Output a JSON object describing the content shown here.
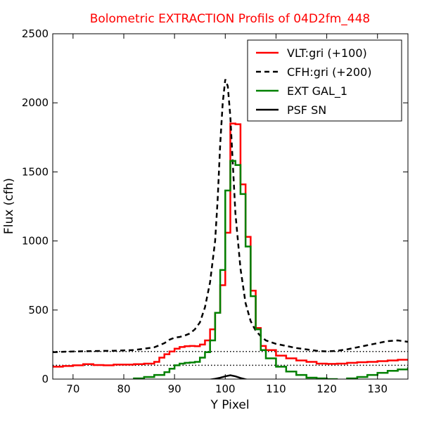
{
  "chart_data": {
    "type": "line",
    "title": "Bolometric EXTRACTION Profils of 04D2fm_448",
    "title_color": "#ff0000",
    "xlabel": "Y Pixel",
    "ylabel": "Flux (cfh)",
    "xlim": [
      66,
      136
    ],
    "ylim": [
      0,
      2500
    ],
    "x_ticks": [
      70,
      80,
      90,
      100,
      110,
      120,
      130
    ],
    "y_ticks": [
      0,
      500,
      1000,
      1500,
      2000,
      2500
    ],
    "grid": false,
    "legend_position": "top-right",
    "series": [
      {
        "name": "VLT:gri (+100)",
        "color": "#ff0000",
        "style": "steps",
        "x": [
          66,
          68,
          70,
          72,
          74,
          76,
          78,
          80,
          82,
          84,
          86,
          87,
          88,
          89,
          90,
          91,
          92,
          93,
          94,
          95,
          96,
          97,
          98,
          99,
          100,
          101,
          102,
          103,
          104,
          105,
          106,
          107,
          108,
          110,
          112,
          114,
          116,
          118,
          120,
          122,
          124,
          126,
          128,
          130,
          132,
          134,
          136
        ],
        "y": [
          90,
          95,
          100,
          108,
          102,
          100,
          105,
          105,
          108,
          112,
          125,
          155,
          180,
          200,
          220,
          232,
          238,
          240,
          238,
          250,
          280,
          360,
          480,
          680,
          1060,
          1850,
          1845,
          1410,
          1030,
          640,
          370,
          240,
          210,
          170,
          150,
          135,
          125,
          112,
          110,
          112,
          118,
          122,
          125,
          130,
          135,
          140,
          140
        ]
      },
      {
        "name": "CFH:gri (+200)",
        "color": "#000000",
        "style": "dashed",
        "x": [
          66,
          70,
          74,
          78,
          82,
          86,
          88,
          89,
          90,
          91,
          92,
          93,
          94,
          95,
          96,
          97,
          98,
          98.5,
          99,
          99.5,
          100,
          100.5,
          101,
          101.5,
          102,
          103,
          104,
          105,
          106,
          107,
          108,
          110,
          112,
          114,
          116,
          118,
          120,
          122,
          124,
          126,
          128,
          130,
          132,
          134,
          136
        ],
        "y": [
          195,
          200,
          203,
          205,
          210,
          230,
          260,
          285,
          300,
          305,
          315,
          330,
          360,
          410,
          520,
          700,
          1000,
          1300,
          1700,
          2000,
          2170,
          2120,
          1900,
          1550,
          1200,
          800,
          550,
          420,
          350,
          310,
          280,
          255,
          240,
          225,
          215,
          205,
          200,
          205,
          215,
          230,
          245,
          260,
          275,
          280,
          270
        ]
      },
      {
        "name": "EXT GAL_1",
        "color": "#008000",
        "style": "steps",
        "x": [
          76,
          78,
          80,
          82,
          84,
          86,
          88,
          89,
          90,
          91,
          92,
          93,
          94,
          95,
          96,
          97,
          98,
          99,
          100,
          101,
          102,
          103,
          104,
          105,
          106,
          107,
          108,
          110,
          112,
          114,
          116,
          118,
          120,
          122,
          124,
          126,
          128,
          130,
          132,
          134,
          136
        ],
        "y": [
          -10,
          -10,
          -8,
          5,
          15,
          30,
          50,
          75,
          100,
          112,
          118,
          120,
          125,
          155,
          195,
          280,
          480,
          790,
          1365,
          1580,
          1550,
          1340,
          960,
          600,
          360,
          210,
          150,
          90,
          55,
          30,
          10,
          5,
          0,
          -5,
          5,
          15,
          30,
          45,
          60,
          70,
          85
        ]
      },
      {
        "name": "PSF SN",
        "color": "#000000",
        "style": "solid",
        "x": [
          95,
          96,
          97,
          98,
          99,
          100,
          101,
          102,
          103,
          104,
          105
        ],
        "y": [
          -10,
          -8,
          -4,
          2,
          10,
          20,
          28,
          20,
          8,
          -2,
          -8
        ]
      }
    ],
    "reference_lines": [
      {
        "y": 100,
        "style": "dotted",
        "color": "#000000"
      },
      {
        "y": 200,
        "style": "dotted",
        "color": "#000000"
      }
    ]
  }
}
